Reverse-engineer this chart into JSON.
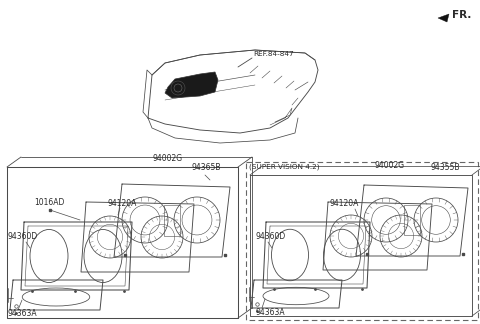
{
  "bg_color": "#ffffff",
  "lc": "#4a4a4a",
  "tc": "#2a2a2a",
  "fr_label": "FR.",
  "ref_label": "REF.84-847",
  "label_94002G_L": "94002G",
  "label_94365B": "94365B",
  "label_1016AD": "1016AD",
  "label_94120A_L": "94120A",
  "label_94360D_L": "94360D",
  "label_94363A_L": "94363A",
  "label_94002G_R": "94002G",
  "label_94355B": "94355B",
  "label_94120A_R": "94120A",
  "label_94360D_R": "94360D",
  "label_94363A_R": "94363A",
  "super_vision_label": "(SUPER VISION 4.2)",
  "fs": 5.5,
  "fs_sv": 5.2,
  "fs_fr": 7.5
}
